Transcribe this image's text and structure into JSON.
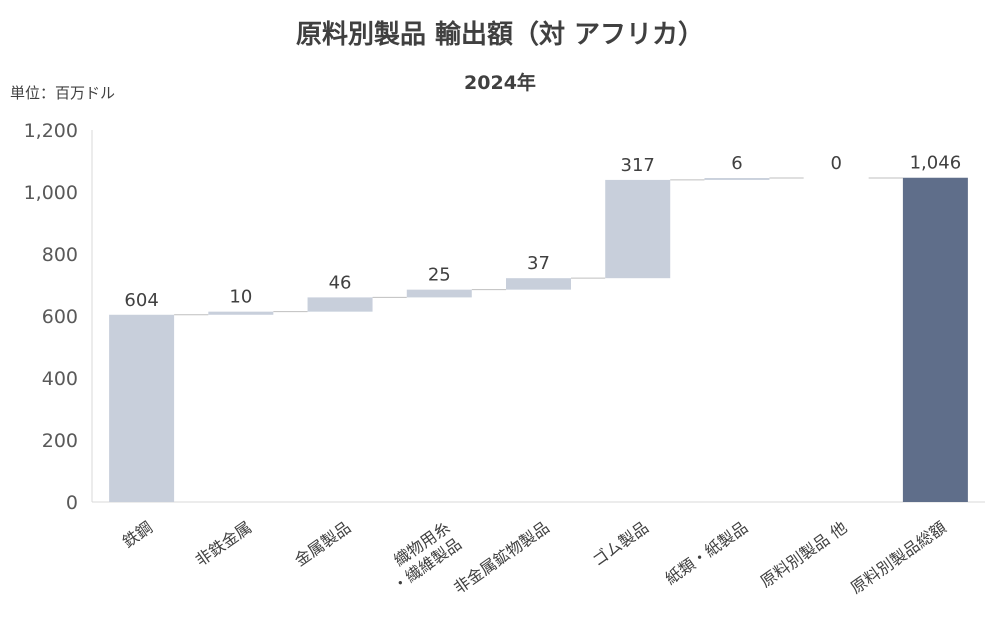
{
  "title": "原料別製品 輸出額（対 アフリカ）",
  "subtitle": "2024年",
  "unit_label": "単位：百万ドル",
  "colors": {
    "step_bar": "#c8cfdb",
    "total_bar": "#5f6e8a",
    "axis": "#d9d9d9",
    "connector": "#bfbfbf"
  },
  "chart_data": {
    "type": "bar",
    "subtype": "waterfall",
    "title": "原料別製品 輸出額（対 アフリカ）",
    "subtitle": "2024年",
    "ylabel": "単位：百万ドル",
    "xlabel": "",
    "ylim": [
      0,
      1200
    ],
    "yticks": [
      0,
      200,
      400,
      600,
      800,
      1000,
      1200
    ],
    "ytick_labels": [
      "0",
      "200",
      "400",
      "600",
      "800",
      "1,000",
      "1,200"
    ],
    "categories": [
      [
        "鉄鋼"
      ],
      [
        "非鉄金属"
      ],
      [
        "金属製品"
      ],
      [
        "織物用糸",
        "・繊維製品"
      ],
      [
        "非金属鉱物製品"
      ],
      [
        "ゴム製品"
      ],
      [
        "紙類・紙製品"
      ],
      [
        "原料別製品 他"
      ],
      [
        "原料別製品総額"
      ]
    ],
    "values": [
      604,
      10,
      46,
      25,
      37,
      317,
      6,
      0,
      1046
    ],
    "labels": [
      "604",
      "10",
      "46",
      "25",
      "37",
      "317",
      "6",
      "0",
      "1,046"
    ],
    "is_total": [
      false,
      false,
      false,
      false,
      false,
      false,
      false,
      false,
      true
    ],
    "grid": false,
    "legend": "none"
  }
}
